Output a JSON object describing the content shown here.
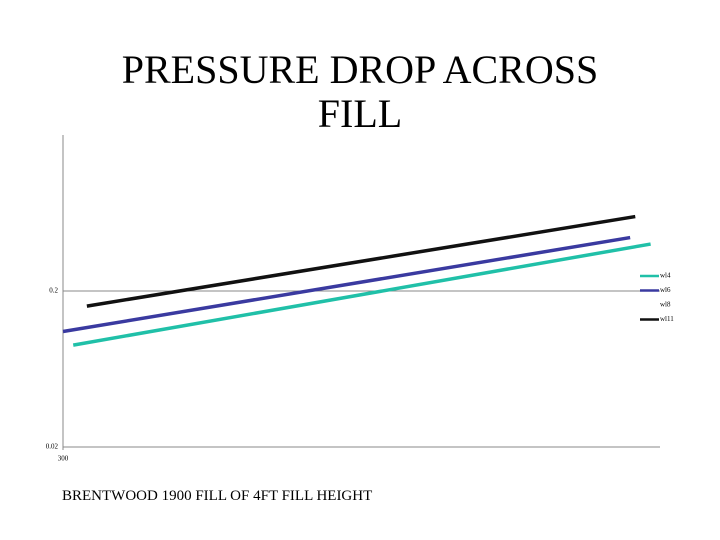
{
  "chart_data": {
    "type": "line",
    "title": "PRESSURE DROP ACROSS FILL",
    "caption": "BRENTWOOD 1900 FILL OF 4FT FILL HEIGHT",
    "ylog": true,
    "ylim": [
      0.02,
      2
    ],
    "yticks": [
      0.02,
      0.2
    ],
    "xlim": [
      300,
      1000
    ],
    "xticks": [
      300
    ],
    "grid": true,
    "legend": "right",
    "series": [
      {
        "name": "wl4",
        "color": "#20c0a8",
        "x": [
          312,
          989
        ],
        "values": [
          0.09,
          0.4
        ]
      },
      {
        "name": "wl6",
        "color": "#3a3aa0",
        "x": [
          300,
          965
        ],
        "values": [
          0.11,
          0.44
        ]
      },
      {
        "name": "wl8",
        "color": "#ffffff",
        "x": [],
        "values": []
      },
      {
        "name": "wl11",
        "color": "#111111",
        "x": [
          328,
          971
        ],
        "values": [
          0.16,
          0.6
        ]
      }
    ]
  }
}
